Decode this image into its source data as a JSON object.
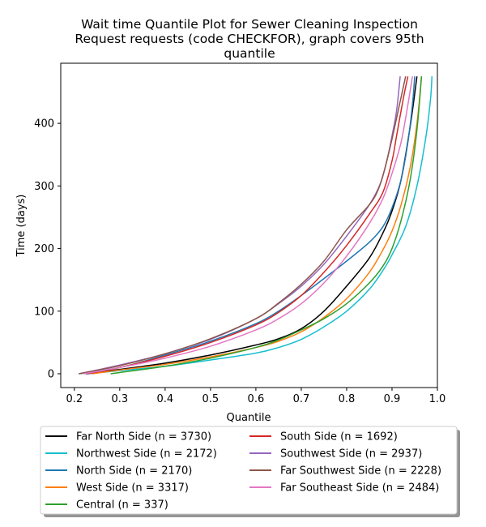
{
  "chart_data": {
    "type": "line",
    "title_lines": [
      "Wait time Quantile Plot for Sewer Cleaning Inspection",
      "Request  requests (code CHECKFOR), graph covers 95th",
      "quantile"
    ],
    "xlabel": "Quantile",
    "ylabel": "Time (days)",
    "xlim": [
      0.17,
      1.0
    ],
    "ylim": [
      -22,
      496
    ],
    "x_ticks": [
      0.2,
      0.3,
      0.4,
      0.5,
      0.6,
      0.7,
      0.8,
      0.9,
      1.0
    ],
    "x_tick_labels": [
      "0.2",
      "0.3",
      "0.4",
      "0.5",
      "0.6",
      "0.7",
      "0.8",
      "0.9",
      "1.0"
    ],
    "y_ticks": [
      0,
      100,
      200,
      300,
      400
    ],
    "y_tick_labels": [
      "0",
      "100",
      "200",
      "300",
      "400"
    ],
    "grid": false,
    "legend_placement": "below",
    "series": [
      {
        "name": "Far North Side (n = 3730)",
        "color": "#000000",
        "points": [
          [
            0.225,
            0
          ],
          [
            0.3,
            7
          ],
          [
            0.4,
            17
          ],
          [
            0.5,
            30
          ],
          [
            0.6,
            46
          ],
          [
            0.65,
            56
          ],
          [
            0.7,
            72
          ],
          [
            0.75,
            100
          ],
          [
            0.8,
            140
          ],
          [
            0.85,
            185
          ],
          [
            0.88,
            225
          ],
          [
            0.9,
            260
          ],
          [
            0.92,
            310
          ],
          [
            0.94,
            395
          ],
          [
            0.955,
            475
          ]
        ]
      },
      {
        "name": "Northwest Side (n = 2172)",
        "color": "#17becf",
        "points": [
          [
            0.23,
            0
          ],
          [
            0.3,
            5
          ],
          [
            0.4,
            12
          ],
          [
            0.5,
            22
          ],
          [
            0.6,
            33
          ],
          [
            0.65,
            42
          ],
          [
            0.7,
            55
          ],
          [
            0.75,
            75
          ],
          [
            0.8,
            100
          ],
          [
            0.85,
            135
          ],
          [
            0.88,
            165
          ],
          [
            0.9,
            190
          ],
          [
            0.93,
            235
          ],
          [
            0.955,
            300
          ],
          [
            0.975,
            380
          ],
          [
            0.985,
            440
          ],
          [
            0.988,
            475
          ]
        ]
      },
      {
        "name": "North Side (n = 2170)",
        "color": "#1f77b4",
        "points": [
          [
            0.21,
            0
          ],
          [
            0.3,
            10
          ],
          [
            0.4,
            30
          ],
          [
            0.5,
            52
          ],
          [
            0.6,
            80
          ],
          [
            0.65,
            100
          ],
          [
            0.7,
            125
          ],
          [
            0.75,
            152
          ],
          [
            0.8,
            180
          ],
          [
            0.85,
            210
          ],
          [
            0.88,
            235
          ],
          [
            0.9,
            265
          ],
          [
            0.92,
            310
          ],
          [
            0.935,
            370
          ],
          [
            0.945,
            430
          ],
          [
            0.95,
            475
          ]
        ]
      },
      {
        "name": "West Side (n = 3317)",
        "color": "#ff7f0e",
        "points": [
          [
            0.24,
            0
          ],
          [
            0.3,
            6
          ],
          [
            0.4,
            15
          ],
          [
            0.5,
            27
          ],
          [
            0.6,
            42
          ],
          [
            0.65,
            52
          ],
          [
            0.7,
            67
          ],
          [
            0.75,
            90
          ],
          [
            0.8,
            120
          ],
          [
            0.85,
            162
          ],
          [
            0.88,
            198
          ],
          [
            0.9,
            228
          ],
          [
            0.92,
            270
          ],
          [
            0.94,
            330
          ],
          [
            0.955,
            400
          ],
          [
            0.965,
            475
          ]
        ]
      },
      {
        "name": "Central (n = 337)",
        "color": "#2ca02c",
        "points": [
          [
            0.28,
            0
          ],
          [
            0.3,
            2
          ],
          [
            0.4,
            12
          ],
          [
            0.5,
            25
          ],
          [
            0.6,
            42
          ],
          [
            0.65,
            54
          ],
          [
            0.7,
            70
          ],
          [
            0.75,
            88
          ],
          [
            0.8,
            112
          ],
          [
            0.85,
            145
          ],
          [
            0.88,
            172
          ],
          [
            0.9,
            200
          ],
          [
            0.92,
            245
          ],
          [
            0.94,
            310
          ],
          [
            0.955,
            390
          ],
          [
            0.965,
            475
          ]
        ]
      },
      {
        "name": "South Side (n = 1692)",
        "color": "#d62728",
        "points": [
          [
            0.23,
            0
          ],
          [
            0.3,
            10
          ],
          [
            0.4,
            28
          ],
          [
            0.5,
            50
          ],
          [
            0.6,
            78
          ],
          [
            0.65,
            98
          ],
          [
            0.7,
            125
          ],
          [
            0.75,
            162
          ],
          [
            0.8,
            205
          ],
          [
            0.85,
            255
          ],
          [
            0.88,
            290
          ],
          [
            0.9,
            340
          ],
          [
            0.91,
            380
          ],
          [
            0.925,
            440
          ],
          [
            0.935,
            475
          ]
        ]
      },
      {
        "name": "Southwest Side (n = 2937)",
        "color": "#9467bd",
        "points": [
          [
            0.21,
            0
          ],
          [
            0.3,
            14
          ],
          [
            0.4,
            32
          ],
          [
            0.5,
            55
          ],
          [
            0.6,
            88
          ],
          [
            0.65,
            112
          ],
          [
            0.7,
            140
          ],
          [
            0.75,
            175
          ],
          [
            0.8,
            220
          ],
          [
            0.85,
            270
          ],
          [
            0.875,
            305
          ],
          [
            0.89,
            345
          ],
          [
            0.9,
            380
          ],
          [
            0.91,
            420
          ],
          [
            0.918,
            475
          ]
        ]
      },
      {
        "name": "Far Southwest Side (n = 2228)",
        "color": "#8c564b",
        "points": [
          [
            0.21,
            0
          ],
          [
            0.3,
            13
          ],
          [
            0.4,
            32
          ],
          [
            0.5,
            56
          ],
          [
            0.6,
            88
          ],
          [
            0.65,
            113
          ],
          [
            0.7,
            143
          ],
          [
            0.75,
            180
          ],
          [
            0.8,
            230
          ],
          [
            0.85,
            270
          ],
          [
            0.87,
            295
          ],
          [
            0.885,
            330
          ],
          [
            0.9,
            375
          ],
          [
            0.915,
            425
          ],
          [
            0.93,
            475
          ]
        ]
      },
      {
        "name": "Far Southeast Side (n = 2484)",
        "color": "#e377c2",
        "points": [
          [
            0.22,
            0
          ],
          [
            0.3,
            10
          ],
          [
            0.4,
            25
          ],
          [
            0.5,
            44
          ],
          [
            0.6,
            70
          ],
          [
            0.65,
            88
          ],
          [
            0.7,
            112
          ],
          [
            0.75,
            145
          ],
          [
            0.8,
            188
          ],
          [
            0.85,
            240
          ],
          [
            0.88,
            280
          ],
          [
            0.9,
            320
          ],
          [
            0.92,
            370
          ],
          [
            0.935,
            430
          ],
          [
            0.945,
            475
          ]
        ]
      }
    ]
  }
}
